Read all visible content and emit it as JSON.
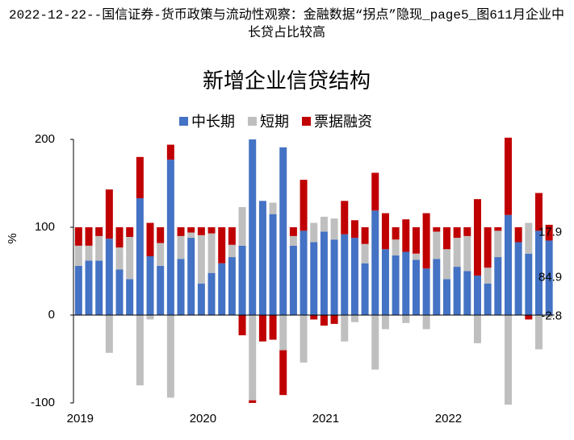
{
  "page_title": "2022-12-22--国信证券-货币政策与流动性观察：金融数据“拐点”隐现_page5_图611月企业中长贷占比较高",
  "chart_data": {
    "type": "bar",
    "stacked": true,
    "title": "新增企业信贷结构",
    "y_label": "%",
    "legend": "top",
    "categories": [
      "2019",
      null,
      null,
      null,
      null,
      null,
      null,
      null,
      null,
      null,
      null,
      null,
      "2020",
      null,
      null,
      null,
      null,
      null,
      null,
      null,
      null,
      null,
      null,
      null,
      "2021",
      null,
      null,
      null,
      null,
      null,
      null,
      null,
      null,
      null,
      null,
      null,
      "2022",
      null,
      null,
      null,
      null,
      null,
      null,
      null,
      null,
      null,
      null
    ],
    "series": [
      {
        "name": "中长期",
        "color": "#4472c4",
        "values": [
          56,
          62,
          62,
          87,
          52,
          41,
          133,
          67,
          56,
          177,
          64,
          88,
          36,
          48,
          59,
          66,
          79,
          200,
          130,
          115,
          191,
          79,
          96,
          83,
          95,
          86,
          92,
          88,
          59,
          119,
          75,
          68,
          72,
          63,
          53,
          64,
          41,
          55,
          50,
          45,
          36,
          66,
          114,
          83,
          70,
          96,
          84.9
        ]
      },
      {
        "name": "短期",
        "color": "#bfbfbf",
        "values": [
          23,
          17,
          28,
          -43,
          25,
          48,
          -80,
          -5,
          26,
          -94,
          26,
          6,
          55,
          45,
          0,
          14,
          44,
          -97,
          0,
          13,
          -40,
          11,
          -54,
          22,
          17,
          24,
          -30,
          -8,
          22,
          -62,
          -16,
          18,
          -9,
          7,
          -16,
          31,
          34,
          33,
          40,
          -32,
          18,
          30,
          -102,
          0,
          35,
          -39,
          -2.8
        ]
      },
      {
        "name": "票据融资",
        "color": "#c00000",
        "values": [
          21,
          21,
          10,
          56,
          23,
          11,
          47,
          38,
          18,
          17,
          10,
          6,
          9,
          7,
          41,
          20,
          -23,
          -3,
          -30,
          -28,
          -51,
          10,
          58,
          -5,
          -12,
          -10,
          38,
          20,
          19,
          43,
          41,
          14,
          37,
          30,
          63,
          5,
          25,
          12,
          10,
          87,
          46,
          4,
          88,
          17,
          -5,
          43,
          17.9
        ]
      }
    ],
    "ylim": [
      -100,
      200
    ],
    "yticks": [
      -100,
      0,
      100,
      200
    ]
  }
}
